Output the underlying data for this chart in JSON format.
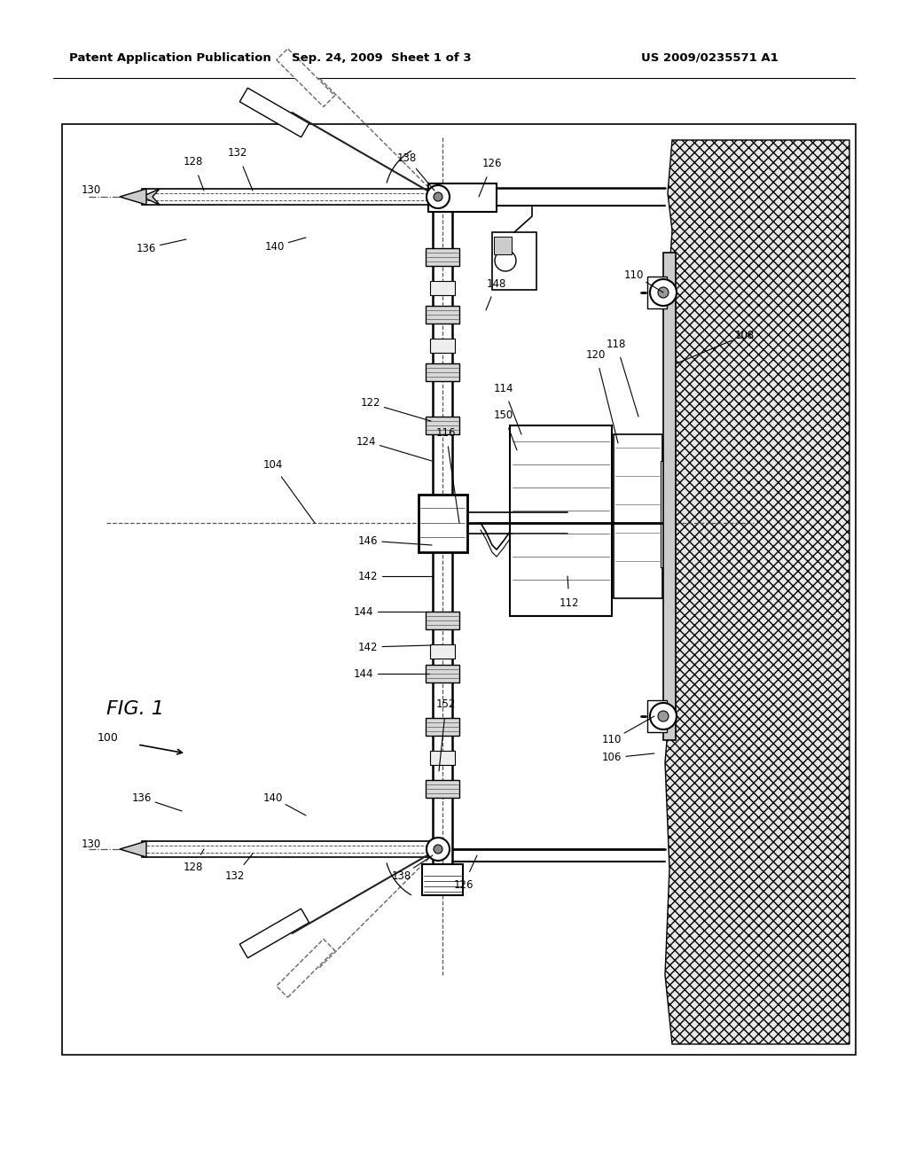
{
  "bg_color": "#ffffff",
  "header_left": "Patent Application Publication",
  "header_mid": "Sep. 24, 2009  Sheet 1 of 3",
  "header_right": "US 2009/0235571 A1",
  "fig_label": "FIG. 1",
  "fig_number": "100"
}
